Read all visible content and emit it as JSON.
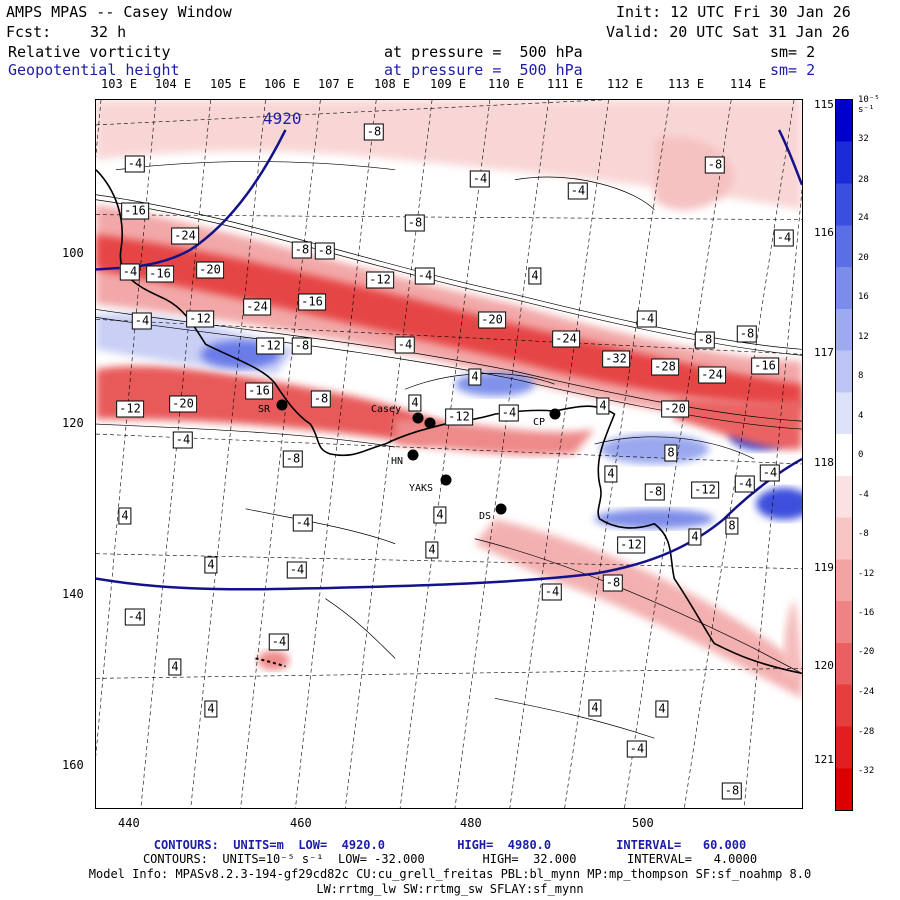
{
  "header": {
    "title": "AMPS MPAS -- Casey Window",
    "init": "Init: 12 UTC Fri 30 Jan 26",
    "fcst_label": "Fcst:",
    "fcst_value": "32 h",
    "valid": "Valid: 20 UTC Sat 31 Jan 26",
    "field1": "Relative vorticity",
    "field1_level": "at pressure =  500 hPa",
    "field1_sm": "sm= 2",
    "field2": "Geopotential height",
    "field2_level": "at pressure =  500 hPa",
    "field2_sm": "sm= 2"
  },
  "lon_labels": [
    "103 E",
    "104 E",
    "105 E",
    "106 E",
    "107 E",
    "108 E",
    "109 E",
    "110 E",
    "111 E",
    "112 E",
    "113 E",
    "114 E"
  ],
  "lat_labels_right": [
    "115 E",
    "116 E",
    "117 E",
    "118 E",
    "119 E",
    "120 E",
    "121 E"
  ],
  "y_ticks": [
    "100",
    "120",
    "140",
    "160"
  ],
  "x_ticks": [
    "440",
    "460",
    "480",
    "500"
  ],
  "height_label": "4920",
  "contour_labels": [
    "-8",
    "-4",
    "-4",
    "-8",
    "-4",
    "-16",
    "-8",
    "-24",
    "-4",
    "-8",
    "-4",
    "-8",
    "-16",
    "-20",
    "-12",
    "-4",
    "4",
    "-4",
    "-24",
    "-16",
    "-12",
    "4",
    "-20",
    "-24",
    "-4",
    "-8",
    "-12",
    "-8",
    "-4",
    "-32",
    "-28",
    "-24",
    "-16",
    "-8",
    "-16",
    "-8",
    "4",
    "-12",
    "-20",
    "-12",
    "4",
    "-4",
    "-4",
    "4",
    "-20",
    "-4",
    "-8",
    "4",
    "8",
    "-8",
    "-12",
    "-4",
    "4",
    "-4",
    "4",
    "-4",
    "4",
    "8",
    "-12",
    "4",
    "4",
    "-8",
    "-4",
    "-4",
    "-4",
    "4",
    "4",
    "4",
    "-4",
    "4",
    "-8"
  ],
  "stations": [
    "Casey",
    "CP",
    "SR",
    "HN",
    "YAKS",
    "DS"
  ],
  "colorbar": {
    "unit": "10⁻⁵ s⁻¹",
    "levels": [
      "32",
      "28",
      "24",
      "20",
      "16",
      "12",
      "8",
      "4",
      "0",
      "-4",
      "-8",
      "-12",
      "-16",
      "-20",
      "-24",
      "-28",
      "-32"
    ],
    "colors": [
      "#0000cc",
      "#1a2cd8",
      "#3a4ee0",
      "#5a6ee6",
      "#7b8cec",
      "#9daaf0",
      "#bcc5f5",
      "#dde2fa",
      "#ffffff",
      "#fbe2e2",
      "#f8c4c4",
      "#f4a3a3",
      "#ef8282",
      "#ea6060",
      "#e63d3d",
      "#e21e1e",
      "#dd0000"
    ]
  },
  "footer": {
    "line1": "CONTOURS:  UNITS=m  LOW=  4920.0          HIGH=  4980.0         INTERVAL=   60.000",
    "line2": "CONTOURS:  UNITS=10⁻⁵ s⁻¹  LOW= -32.000        HIGH=  32.000       INTERVAL=   4.0000",
    "line3": "Model Info: MPASv8.2.3-194-gf29cd82c CU:cu_grell_freitas PBL:bl_mynn MP:mp_thompson SF:sf_noahmp 8.0",
    "line4": "LW:rrtmg_lw SW:rrtmg_sw SFLAY:sf_mynn"
  }
}
